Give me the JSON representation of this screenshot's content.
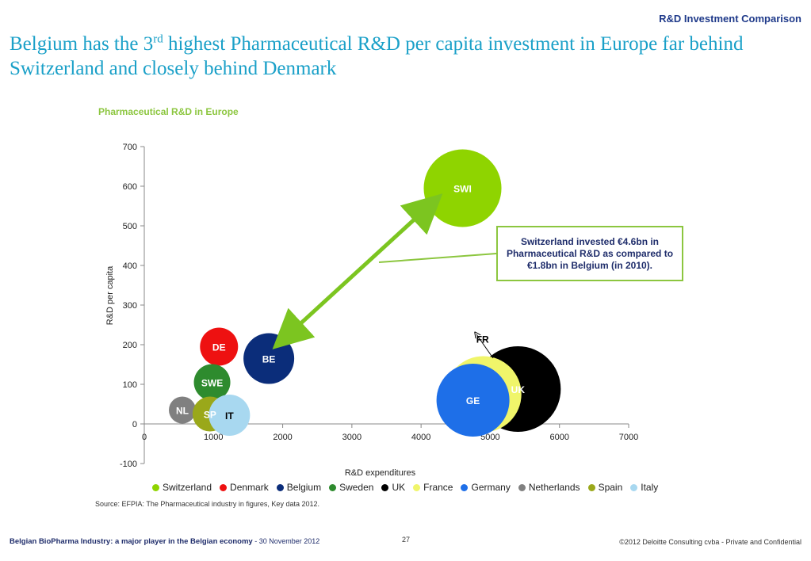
{
  "header": {
    "section": "R&D Investment Comparison"
  },
  "title": {
    "line_pre": "Belgium has the 3",
    "line_sup": "rd",
    "line_post": " highest Pharmaceutical R&D per capita investment in Europe far behind Switzerland and closely behind Denmark"
  },
  "callout": {
    "text": "Switzerland invested €4.6bn in Pharmaceutical R&D as compared to €1.8bn in Belgium (in 2010)."
  },
  "chart_data": {
    "type": "bubble",
    "title": "Pharmaceutical R&D in Europe",
    "xlabel": "R&D expenditures",
    "ylabel": "R&D per capita",
    "xlim": [
      0,
      7000
    ],
    "ylim": [
      -100,
      700
    ],
    "x_ticks": [
      "0",
      "1000",
      "2000",
      "3000",
      "4000",
      "5000",
      "6000",
      "7000"
    ],
    "y_ticks": [
      "-100",
      "0",
      "100",
      "200",
      "300",
      "400",
      "500",
      "600",
      "700"
    ],
    "grid": false,
    "legend_position": "bottom",
    "series": [
      {
        "name": "Switzerland",
        "label": "SWI",
        "x": 4600,
        "y": 595,
        "color": "#8fd400",
        "label_color": "#ffffff"
      },
      {
        "name": "Denmark",
        "label": "DE",
        "x": 1080,
        "y": 195,
        "color": "#ee1111",
        "label_color": "#ffffff"
      },
      {
        "name": "Belgium",
        "label": "BE",
        "x": 1800,
        "y": 165,
        "color": "#0b2d7a",
        "label_color": "#ffffff"
      },
      {
        "name": "Sweden",
        "label": "SWE",
        "x": 980,
        "y": 105,
        "color": "#2e8b2e",
        "label_color": "#ffffff"
      },
      {
        "name": "UK",
        "label": "UK",
        "x": 5400,
        "y": 88,
        "color": "#000000",
        "label_color": "#ffffff"
      },
      {
        "name": "France",
        "label": "FR",
        "x": 4900,
        "y": 75,
        "color": "#f0f56a",
        "label_color": "#000000"
      },
      {
        "name": "Germany",
        "label": "GE",
        "x": 4750,
        "y": 60,
        "color": "#1e6fe8",
        "label_color": "#ffffff"
      },
      {
        "name": "Netherlands",
        "label": "NL",
        "x": 550,
        "y": 35,
        "color": "#808080",
        "label_color": "#ffffff"
      },
      {
        "name": "Spain",
        "label": "SP",
        "x": 950,
        "y": 25,
        "color": "#9aa81a",
        "label_color": "#ffffff"
      },
      {
        "name": "Italy",
        "label": "IT",
        "x": 1230,
        "y": 22,
        "color": "#a8d8f0",
        "label_color": "#000000"
      }
    ]
  },
  "source": "Source: EFPIA: The Pharmaceutical industry in figures, Key data 2012.",
  "footer": {
    "title": "Belgian BioPharma Industry: a major player in the Belgian economy",
    "date": " - 30 November 2012",
    "page": "27",
    "copyright": "©2012 Deloitte Consulting cvba - Private and Confidential"
  }
}
